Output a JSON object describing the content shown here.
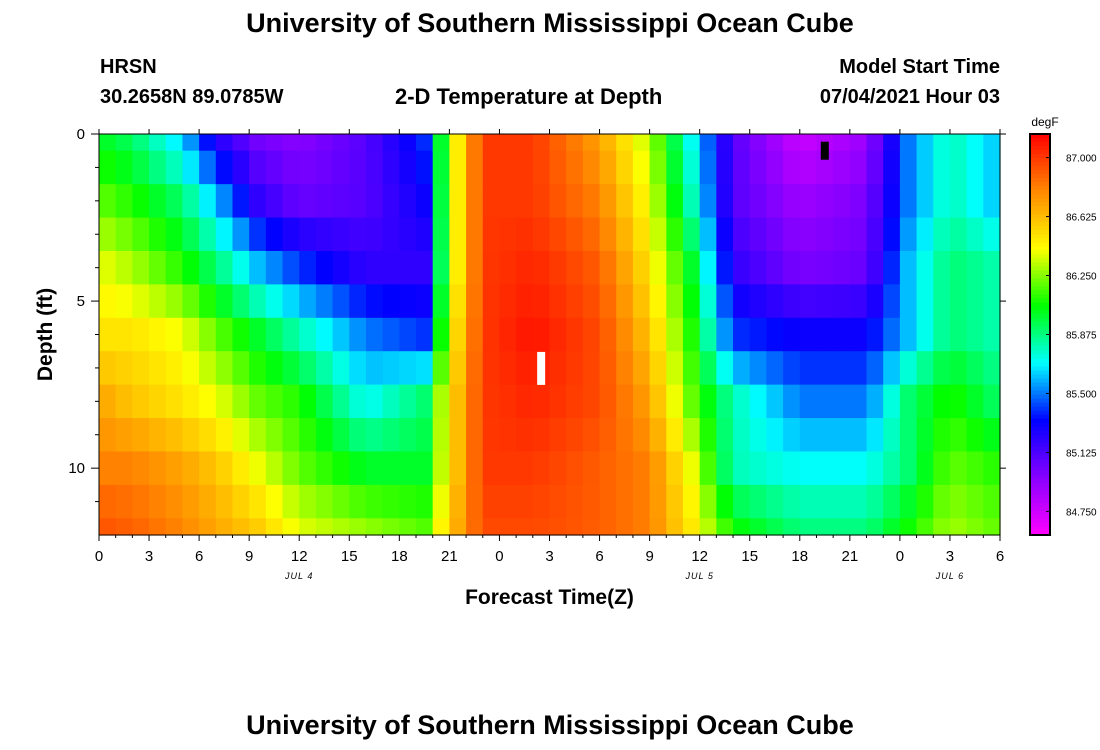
{
  "page": {
    "title_top": "University of Southern Mississippi Ocean Cube",
    "title_bottom": "University of Southern Mississippi Ocean Cube",
    "station": "HRSN",
    "coordinates": "30.2658N  89.0785W",
    "plot_title": "2-D Temperature at Depth",
    "model_label": "Model Start Time",
    "model_time": "07/04/2021 Hour 03"
  },
  "chart_data": {
    "type": "heatmap",
    "title": "2-D Temperature at Depth",
    "xlabel": "Forecast Time(Z)",
    "ylabel": "Depth (ft)",
    "colorbar_label": "degF",
    "xlim": [
      0,
      54
    ],
    "ylim": [
      12,
      0
    ],
    "x_ticks": [
      0,
      3,
      6,
      9,
      12,
      15,
      18,
      21,
      24,
      27,
      30,
      33,
      36,
      39,
      42,
      45,
      48,
      51,
      54
    ],
    "x_tick_labels": [
      "0",
      "3",
      "6",
      "9",
      "12",
      "15",
      "18",
      "21",
      "0",
      "3",
      "6",
      "9",
      "12",
      "15",
      "18",
      "21",
      "0",
      "3",
      "6"
    ],
    "y_ticks": [
      0,
      5,
      10
    ],
    "y_tick_labels": [
      "0",
      "5",
      "10"
    ],
    "date_labels": [
      {
        "text": "JUL 4",
        "x": 12
      },
      {
        "text": "JUL 5",
        "x": 36
      },
      {
        "text": "JUL 6",
        "x": 51
      }
    ],
    "colorbar_ticks": [
      87.0,
      86.625,
      86.25,
      85.875,
      85.5,
      85.125,
      84.75
    ],
    "colorbar_tick_labels": [
      "87.000",
      "86.625",
      "86.250",
      "85.875",
      "85.500",
      "85.125",
      "84.750"
    ],
    "color_range": [
      84.6,
      87.15
    ],
    "colorscale": [
      "#ff00ff",
      "#8800ff",
      "#0000ff",
      "#00ffff",
      "#00ff00",
      "#ffff00",
      "#ff8800",
      "#ff0000"
    ],
    "markers": [
      {
        "x": 43.5,
        "y": 0.5,
        "color": "#000000"
      },
      {
        "x": 26.5,
        "y": 7.0,
        "color": "#ffffff"
      }
    ],
    "depths": [
      0,
      1,
      2,
      3,
      4,
      5,
      6,
      7,
      8,
      9,
      10,
      11,
      12
    ],
    "series": [
      {
        "depth": 0,
        "times": [
          0,
          2,
          5,
          7,
          9.5,
          12,
          16,
          19.5,
          21,
          23,
          26,
          30,
          33,
          35.5,
          38,
          42,
          46,
          48.5,
          51,
          54
        ],
        "values": [
          86.0,
          85.9,
          85.6,
          85.2,
          85.0,
          84.95,
          85.1,
          85.4,
          86.3,
          87.0,
          87.0,
          86.7,
          86.3,
          85.7,
          85.1,
          84.75,
          84.9,
          85.5,
          85.8,
          85.6
        ]
      },
      {
        "depth": 2,
        "times": [
          0,
          2,
          5,
          7,
          9.5,
          12,
          16,
          19.5,
          21,
          23,
          26,
          30,
          33,
          35.5,
          38,
          42,
          46,
          48.5,
          51,
          54
        ],
        "values": [
          86.2,
          86.1,
          85.9,
          85.6,
          85.2,
          85.05,
          85.1,
          85.3,
          86.3,
          87.0,
          87.0,
          86.8,
          86.4,
          85.8,
          85.1,
          84.9,
          85.0,
          85.5,
          85.8,
          85.6
        ]
      },
      {
        "depth": 4,
        "times": [
          0,
          2,
          5,
          7,
          9.5,
          12,
          16,
          19.5,
          21,
          23,
          26,
          30,
          33,
          35.5,
          38,
          42,
          46,
          48.5,
          51,
          54
        ],
        "values": [
          86.4,
          86.3,
          86.1,
          85.9,
          85.6,
          85.4,
          85.2,
          85.2,
          86.3,
          87.0,
          87.05,
          86.9,
          86.5,
          86.0,
          85.2,
          85.0,
          85.05,
          85.6,
          85.9,
          85.8
        ]
      },
      {
        "depth": 6,
        "times": [
          0,
          2,
          5,
          7,
          9.5,
          12,
          16,
          19.5,
          21,
          23,
          26,
          30,
          33,
          35.5,
          38,
          42,
          46,
          48.5,
          51,
          54
        ],
        "values": [
          86.5,
          86.5,
          86.4,
          86.2,
          86.0,
          85.8,
          85.5,
          85.4,
          86.4,
          87.0,
          87.1,
          86.95,
          86.6,
          86.1,
          85.4,
          85.3,
          85.3,
          85.6,
          85.9,
          85.8
        ]
      },
      {
        "depth": 8,
        "times": [
          0,
          2,
          5,
          7,
          9.5,
          12,
          16,
          19.5,
          21,
          23,
          26,
          30,
          33,
          35.5,
          38,
          42,
          46,
          48.5,
          51,
          54
        ],
        "values": [
          86.7,
          86.6,
          86.5,
          86.4,
          86.2,
          86.1,
          85.7,
          85.9,
          86.5,
          87.0,
          87.05,
          86.95,
          86.7,
          86.2,
          85.8,
          85.5,
          85.5,
          85.9,
          86.1,
          85.9
        ]
      },
      {
        "depth": 10,
        "times": [
          0,
          2,
          5,
          7,
          9.5,
          12,
          16,
          19.5,
          21,
          23,
          26,
          30,
          33,
          35.5,
          38,
          42,
          46,
          48.5,
          51,
          54
        ],
        "values": [
          86.8,
          86.8,
          86.7,
          86.6,
          86.4,
          86.2,
          86.0,
          86.0,
          86.5,
          87.0,
          87.0,
          86.9,
          86.8,
          86.4,
          85.8,
          85.7,
          85.7,
          85.9,
          86.2,
          86.1
        ]
      },
      {
        "depth": 12,
        "times": [
          0,
          2,
          5,
          7,
          9.5,
          12,
          16,
          19.5,
          21,
          23,
          26,
          30,
          33,
          35.5,
          38,
          42,
          46,
          48.5,
          51,
          54
        ],
        "values": [
          86.95,
          86.9,
          86.8,
          86.7,
          86.6,
          86.4,
          86.3,
          86.2,
          86.6,
          86.95,
          86.95,
          86.9,
          86.8,
          86.5,
          86.1,
          85.9,
          85.9,
          86.1,
          86.3,
          86.2
        ]
      }
    ]
  }
}
